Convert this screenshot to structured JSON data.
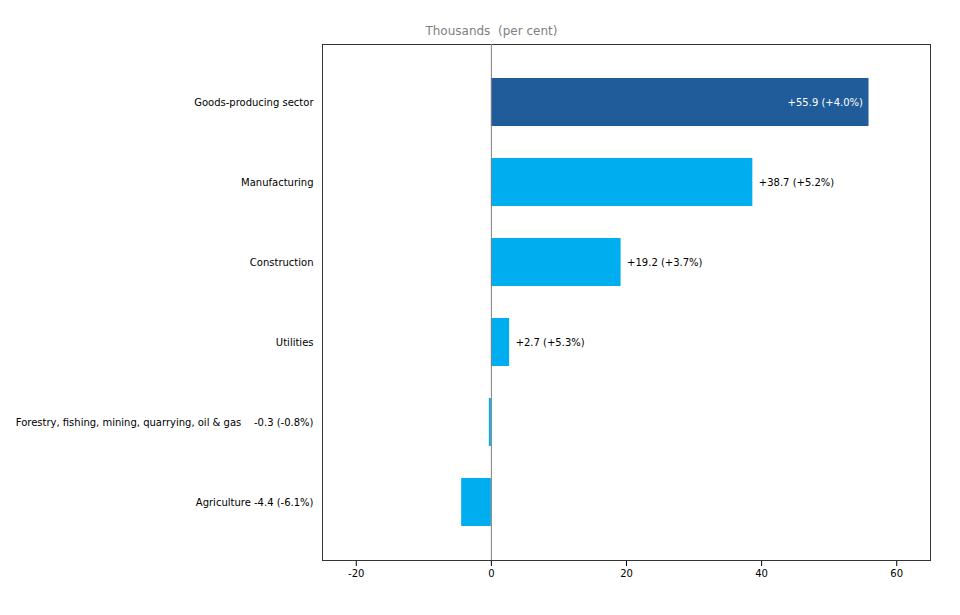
{
  "chart_data": {
    "type": "bar",
    "orientation": "horizontal",
    "title": "Thousands  (per cent)",
    "categories": [
      "Agriculture -4.4 (-6.1%)",
      "Forestry, fishing, mining, quarrying, oil & gas    -0.3 (-0.8%)",
      "Utilities",
      "Construction",
      "Manufacturing",
      "Goods-producing sector"
    ],
    "values": [
      -4.4,
      -0.3,
      2.7,
      19.2,
      38.7,
      55.9
    ],
    "value_labels": [
      null,
      null,
      "+2.7 (+5.3%)",
      "+19.2 (+3.7%)",
      "+38.7 (+5.2%)",
      "+55.9 (+4.0%)"
    ],
    "colors": [
      "#00AEEF",
      "#00AEEF",
      "#00AEEF",
      "#00AEEF",
      "#00AEEF",
      "#1F5C99"
    ],
    "xlim": [
      -25,
      65
    ],
    "xticks": [
      -20,
      0,
      20,
      40,
      60
    ],
    "grid": false,
    "data_labels": true
  }
}
